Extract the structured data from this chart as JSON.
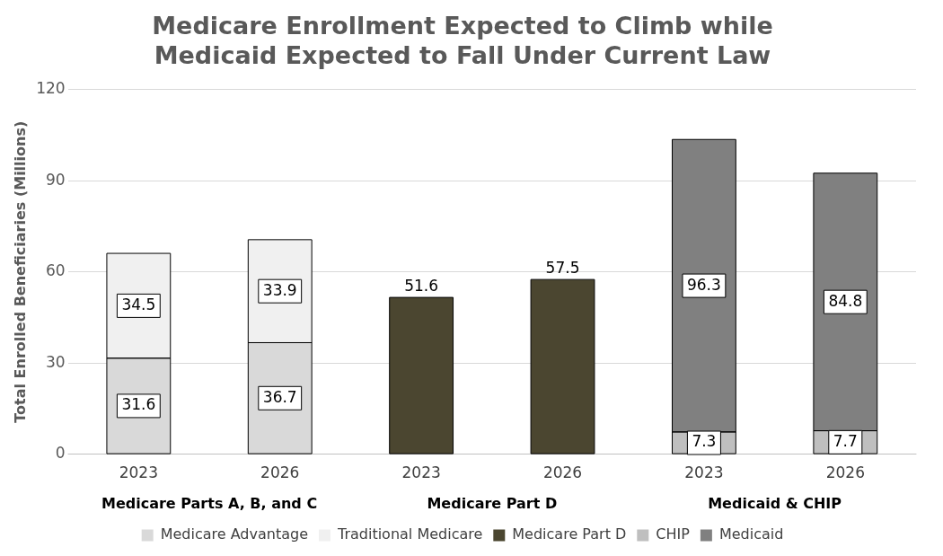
{
  "chart_data": {
    "type": "bar",
    "title": "Medicare Enrollment Expected to Climb while Medicaid Expected to Fall Under Current Law",
    "ylabel": "Total Enrolled Beneficiaries (Millions)",
    "categories": [
      "2023",
      "2026",
      "2023",
      "2026",
      "2023",
      "2026"
    ],
    "annotations": [
      "Medicare Parts A, B, and C",
      "Medicare Part D",
      "Medicaid & CHIP"
    ],
    "stacked": true,
    "series": [
      {
        "name": "Medicare Advantage",
        "color": "#d9d9d9",
        "values": [
          31.6,
          36.7,
          null,
          null,
          null,
          null
        ]
      },
      {
        "name": "Traditional Medicare",
        "color": "#f0f0f0",
        "values": [
          34.5,
          33.9,
          null,
          null,
          null,
          null
        ]
      },
      {
        "name": "Medicare Part D",
        "color": "#4b4630",
        "values": [
          null,
          null,
          51.6,
          57.5,
          null,
          null
        ]
      },
      {
        "name": "CHIP",
        "color": "#bfbfbf",
        "values": [
          null,
          null,
          null,
          null,
          7.3,
          7.7
        ]
      },
      {
        "name": "Medicaid",
        "color": "#808080",
        "values": [
          null,
          null,
          null,
          null,
          96.3,
          84.8
        ]
      }
    ],
    "ylim": [
      0,
      120
    ],
    "yticks": [
      0,
      30,
      60,
      90,
      120
    ],
    "grid": "y",
    "legend": "bottom",
    "data_labels": true
  }
}
